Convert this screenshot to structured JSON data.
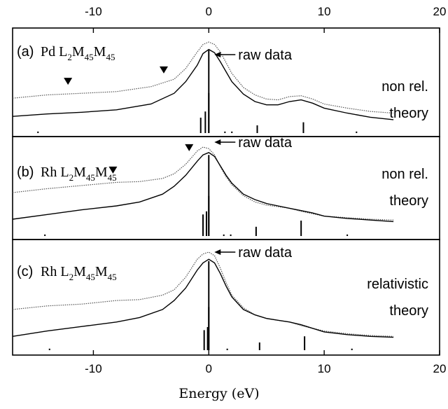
{
  "chart_data": {
    "type": "line",
    "xlabel": "Energy (eV)",
    "xlim": [
      -17,
      20
    ],
    "top_ticks": [
      "-10",
      "0",
      "10",
      "20"
    ],
    "bottom_ticks": [
      "-10",
      "0",
      "10",
      "20"
    ],
    "tick_values": [
      -10,
      0,
      10,
      20
    ],
    "panels": [
      {
        "label": "(a)",
        "element": "Pd",
        "annotation": "raw data",
        "theory_line1": "non rel.",
        "theory_line2": "theory",
        "markers_x": [
          -12.2,
          -3.9
        ],
        "stick_x": [
          -14.8,
          -0.7,
          -0.3,
          0.0,
          1.4,
          2.0,
          4.2,
          8.2,
          12.8
        ],
        "stick_h": [
          1,
          10,
          14,
          26,
          1,
          1,
          5,
          7,
          1
        ],
        "series": [
          {
            "name": "raw data",
            "style": "dotted",
            "x": [
              -17,
              -14,
              -11,
              -8,
              -5,
              -3,
              -2,
              -1,
              -0.5,
              0,
              0.5,
              1,
              1.5,
              2,
              3,
              4,
              5,
              6,
              7,
              8,
              9,
              10,
              12,
              14,
              16
            ],
            "y": [
              0.32,
              0.36,
              0.38,
              0.4,
              0.46,
              0.55,
              0.68,
              0.88,
              0.97,
              1.0,
              0.97,
              0.88,
              0.75,
              0.62,
              0.45,
              0.36,
              0.31,
              0.3,
              0.34,
              0.35,
              0.31,
              0.25,
              0.2,
              0.16,
              0.14
            ]
          },
          {
            "name": "theory",
            "style": "solid",
            "x": [
              -17,
              -14,
              -11,
              -8,
              -5,
              -3,
              -2,
              -1,
              -0.5,
              0,
              0.5,
              1,
              1.5,
              2,
              3,
              4,
              5,
              6,
              7,
              8,
              9,
              10,
              12,
              14,
              16
            ],
            "y": [
              0.1,
              0.13,
              0.15,
              0.18,
              0.25,
              0.38,
              0.52,
              0.72,
              0.86,
              0.91,
              0.87,
              0.76,
              0.64,
              0.52,
              0.37,
              0.28,
              0.24,
              0.24,
              0.28,
              0.3,
              0.26,
              0.2,
              0.14,
              0.09,
              0.06
            ]
          }
        ]
      },
      {
        "label": "(b)",
        "element": "Rh",
        "annotation": "raw data",
        "theory_line1": "non rel.",
        "theory_line2": "theory",
        "markers_x": [
          -8.3,
          -1.7
        ],
        "stick_x": [
          -14.2,
          -0.5,
          -0.2,
          0.0,
          1.3,
          1.9,
          4.1,
          8.0,
          12.0
        ],
        "stick_h": [
          1,
          14,
          16,
          26,
          1,
          1,
          6,
          10,
          1
        ],
        "series": [
          {
            "name": "raw data",
            "style": "dotted",
            "x": [
              -17,
              -14,
              -11,
              -8,
              -6,
              -4,
              -3,
              -2,
              -1,
              -0.5,
              0,
              0.5,
              1,
              1.5,
              2,
              3,
              4,
              5,
              6,
              7,
              8,
              9,
              10,
              12,
              14,
              16
            ],
            "y": [
              0.42,
              0.47,
              0.51,
              0.55,
              0.56,
              0.6,
              0.66,
              0.78,
              0.95,
              1.0,
              0.98,
              0.9,
              0.75,
              0.62,
              0.52,
              0.38,
              0.3,
              0.26,
              0.24,
              0.22,
              0.18,
              0.15,
              0.12,
              0.1,
              0.08,
              0.07
            ]
          },
          {
            "name": "theory",
            "style": "solid",
            "x": [
              -17,
              -14,
              -11,
              -8,
              -6,
              -4,
              -3,
              -2,
              -1,
              -0.5,
              0,
              0.5,
              1,
              1.5,
              2,
              3,
              4,
              5,
              6,
              7,
              8,
              9,
              10,
              12,
              14,
              16
            ],
            "y": [
              0.08,
              0.14,
              0.2,
              0.25,
              0.3,
              0.4,
              0.5,
              0.64,
              0.82,
              0.9,
              0.93,
              0.88,
              0.76,
              0.64,
              0.54,
              0.4,
              0.33,
              0.28,
              0.25,
              0.22,
              0.19,
              0.16,
              0.12,
              0.09,
              0.07,
              0.05
            ]
          }
        ]
      },
      {
        "label": "(c)",
        "element": "Rh",
        "annotation": "raw data",
        "theory_line1": "relativistic",
        "theory_line2": "theory",
        "markers_x": [],
        "stick_x": [
          -13.8,
          -0.4,
          -0.1,
          0.0,
          1.6,
          4.4,
          8.3,
          12.4
        ],
        "stick_h": [
          1,
          13,
          15,
          28,
          1,
          5,
          9,
          1
        ],
        "series": [
          {
            "name": "raw data",
            "style": "dotted",
            "x": [
              -17,
              -14,
              -11,
              -8,
              -6,
              -4,
              -3,
              -2,
              -1,
              -0.5,
              0,
              0.5,
              1,
              1.5,
              2,
              3,
              4,
              5,
              6,
              7,
              8,
              9,
              10,
              12,
              14,
              16
            ],
            "y": [
              0.36,
              0.4,
              0.42,
              0.46,
              0.47,
              0.52,
              0.58,
              0.72,
              0.92,
              0.98,
              1.0,
              0.96,
              0.82,
              0.66,
              0.52,
              0.38,
              0.3,
              0.26,
              0.24,
              0.22,
              0.18,
              0.15,
              0.12,
              0.09,
              0.07,
              0.06
            ]
          },
          {
            "name": "theory",
            "style": "solid",
            "x": [
              -17,
              -14,
              -11,
              -8,
              -6,
              -4,
              -3,
              -2,
              -1,
              -0.5,
              0,
              0.5,
              1,
              1.5,
              2,
              3,
              4,
              5,
              6,
              7,
              8,
              9,
              10,
              12,
              14,
              16
            ],
            "y": [
              0.06,
              0.12,
              0.17,
              0.22,
              0.27,
              0.36,
              0.46,
              0.6,
              0.8,
              0.88,
              0.92,
              0.88,
              0.76,
              0.62,
              0.5,
              0.36,
              0.3,
              0.26,
              0.24,
              0.22,
              0.19,
              0.15,
              0.11,
              0.08,
              0.06,
              0.05
            ]
          }
        ]
      }
    ]
  }
}
